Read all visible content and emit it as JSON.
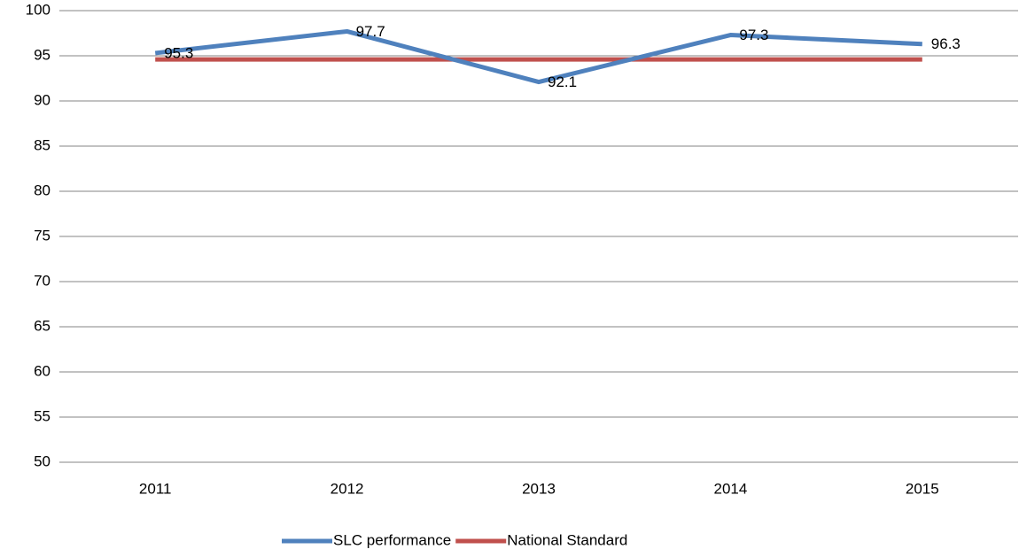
{
  "chart_data": {
    "type": "line",
    "categories": [
      "2011",
      "2012",
      "2013",
      "2014",
      "2015"
    ],
    "series": [
      {
        "name": "SLC performance",
        "color": "#4f81bd",
        "values": [
          95.3,
          97.7,
          92.1,
          97.3,
          96.3
        ],
        "data_labels": true
      },
      {
        "name": "National Standard",
        "color": "#c0504d",
        "values": [
          94.6,
          94.6,
          94.6,
          94.6,
          94.6
        ],
        "data_labels": false
      }
    ],
    "ylim": [
      50,
      100
    ],
    "yticks": [
      50,
      55,
      60,
      65,
      70,
      75,
      80,
      85,
      90,
      95,
      100
    ],
    "grid": true,
    "legend": "bottom"
  }
}
